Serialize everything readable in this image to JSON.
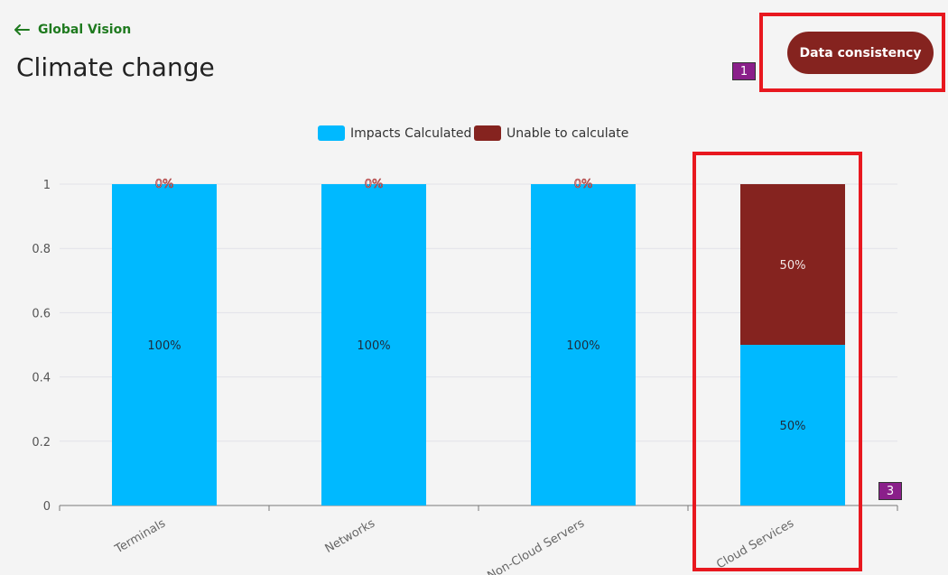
{
  "header": {
    "back_label": "Global Vision",
    "title": "Climate change",
    "button_label": "Data consistency"
  },
  "markers": [
    "1",
    "3"
  ],
  "colors": {
    "calculated": "#00b9ff",
    "unable": "#85231f",
    "accent_green": "#1f7a1f",
    "highlight": "#e8181f",
    "marker": "#8a1f8a"
  },
  "chart_data": {
    "type": "bar",
    "stacked": true,
    "categories": [
      "Terminals",
      "Networks",
      "Non-Cloud Servers",
      "Cloud Services"
    ],
    "series": [
      {
        "name": "Impacts Calculated",
        "values": [
          1,
          1,
          1,
          0.5
        ],
        "labels": [
          "100%",
          "100%",
          "100%",
          "50%"
        ]
      },
      {
        "name": "Unable to calculate",
        "values": [
          0,
          0,
          0,
          0.5
        ],
        "labels": [
          "0%",
          "0%",
          "0%",
          "50%"
        ]
      }
    ],
    "ylim": [
      0,
      1
    ],
    "yticks": [
      "0",
      "0.2",
      "0.4",
      "0.6",
      "0.8",
      "1"
    ],
    "legend": "top-center",
    "grid": true
  }
}
